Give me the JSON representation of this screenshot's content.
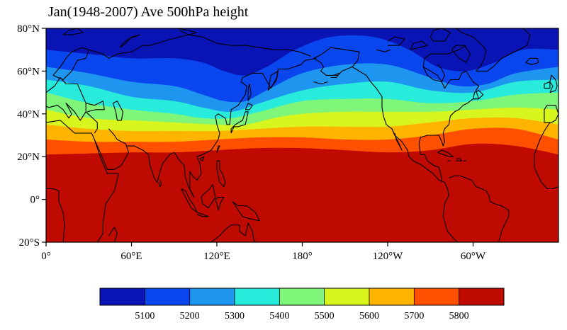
{
  "title": "Jan(1948-2007) Ave 500hPa height",
  "map": {
    "projection": "cylindrical-equidistant",
    "lon_range": [
      0,
      360
    ],
    "lat_range": [
      -20,
      80
    ],
    "coastlines": true,
    "field": "500hPa geopotential height"
  },
  "axes": {
    "lat_ticks": [
      {
        "value": 80,
        "label": "80°N"
      },
      {
        "value": 60,
        "label": "60°N"
      },
      {
        "value": 40,
        "label": "40°N"
      },
      {
        "value": 20,
        "label": "20°N"
      },
      {
        "value": 0,
        "label": "0°"
      },
      {
        "value": -20,
        "label": "20°S"
      }
    ],
    "lon_ticks": [
      {
        "value": 0,
        "label": "0°"
      },
      {
        "value": 60,
        "label": "60°E"
      },
      {
        "value": 120,
        "label": "120°E"
      },
      {
        "value": 180,
        "label": "180°"
      },
      {
        "value": 240,
        "label": "120°W"
      },
      {
        "value": 300,
        "label": "60°W"
      }
    ]
  },
  "colorbar": {
    "levels": [
      "5100",
      "5200",
      "5300",
      "5400",
      "5500",
      "5600",
      "5700",
      "5800"
    ],
    "colors": [
      "#0a14b4",
      "#0a46ee",
      "#1e96f0",
      "#28ebdc",
      "#7ff57a",
      "#d8f51e",
      "#ffb400",
      "#ff5000",
      "#be0a00"
    ]
  },
  "contours": [
    {
      "level": 5800,
      "points": [
        [
          0,
          21
        ],
        [
          30,
          21.5
        ],
        [
          60,
          22
        ],
        [
          90,
          22
        ],
        [
          120,
          23
        ],
        [
          150,
          24
        ],
        [
          180,
          24
        ],
        [
          210,
          23
        ],
        [
          240,
          22
        ],
        [
          270,
          23
        ],
        [
          300,
          26
        ],
        [
          330,
          25
        ],
        [
          360,
          21
        ]
      ]
    },
    {
      "level": 5700,
      "points": [
        [
          0,
          28
        ],
        [
          30,
          27
        ],
        [
          60,
          27
        ],
        [
          90,
          27
        ],
        [
          120,
          28
        ],
        [
          150,
          29
        ],
        [
          180,
          29
        ],
        [
          210,
          28
        ],
        [
          240,
          28
        ],
        [
          270,
          30
        ],
        [
          300,
          33
        ],
        [
          330,
          33
        ],
        [
          360,
          28
        ]
      ]
    },
    {
      "level": 5600,
      "points": [
        [
          0,
          35
        ],
        [
          30,
          33
        ],
        [
          60,
          32
        ],
        [
          90,
          32
        ],
        [
          120,
          32
        ],
        [
          150,
          33
        ],
        [
          180,
          34
        ],
        [
          210,
          34
        ],
        [
          240,
          34
        ],
        [
          270,
          36
        ],
        [
          300,
          38
        ],
        [
          330,
          38
        ],
        [
          360,
          35
        ]
      ]
    },
    {
      "level": 5500,
      "points": [
        [
          0,
          42
        ],
        [
          30,
          38
        ],
        [
          60,
          37
        ],
        [
          90,
          36
        ],
        [
          120,
          35
        ],
        [
          140,
          35
        ],
        [
          160,
          38
        ],
        [
          180,
          40
        ],
        [
          210,
          41
        ],
        [
          240,
          41
        ],
        [
          270,
          41
        ],
        [
          300,
          42
        ],
        [
          330,
          43
        ],
        [
          360,
          42
        ]
      ]
    },
    {
      "level": 5400,
      "points": [
        [
          0,
          50
        ],
        [
          30,
          45
        ],
        [
          60,
          42
        ],
        [
          90,
          40
        ],
        [
          110,
          38
        ],
        [
          130,
          38
        ],
        [
          150,
          41
        ],
        [
          180,
          46
        ],
        [
          210,
          47
        ],
        [
          240,
          47
        ],
        [
          270,
          45
        ],
        [
          300,
          46
        ],
        [
          330,
          49
        ],
        [
          360,
          50
        ]
      ]
    },
    {
      "level": 5300,
      "points": [
        [
          0,
          56
        ],
        [
          30,
          53
        ],
        [
          60,
          48
        ],
        [
          90,
          46
        ],
        [
          110,
          43
        ],
        [
          130,
          41
        ],
        [
          150,
          45
        ],
        [
          180,
          51
        ],
        [
          210,
          54
        ],
        [
          240,
          55
        ],
        [
          270,
          51
        ],
        [
          300,
          50
        ],
        [
          330,
          55
        ],
        [
          360,
          56
        ]
      ]
    },
    {
      "level": 5200,
      "points": [
        [
          0,
          62
        ],
        [
          30,
          59
        ],
        [
          60,
          55
        ],
        [
          90,
          53
        ],
        [
          110,
          49
        ],
        [
          125,
          46
        ],
        [
          140,
          46
        ],
        [
          155,
          51
        ],
        [
          180,
          59
        ],
        [
          210,
          63
        ],
        [
          240,
          63
        ],
        [
          270,
          57
        ],
        [
          290,
          53
        ],
        [
          310,
          54
        ],
        [
          330,
          59
        ],
        [
          360,
          62
        ]
      ]
    },
    {
      "level": 5100,
      "points": [
        [
          0,
          70
        ],
        [
          30,
          68
        ],
        [
          60,
          66
        ],
        [
          90,
          66
        ],
        [
          110,
          64
        ],
        [
          125,
          60
        ],
        [
          140,
          58
        ],
        [
          155,
          62
        ],
        [
          175,
          70
        ],
        [
          200,
          76
        ],
        [
          230,
          76
        ],
        [
          255,
          70
        ],
        [
          275,
          62
        ],
        [
          295,
          60
        ],
        [
          315,
          64
        ],
        [
          335,
          70
        ],
        [
          360,
          70
        ]
      ]
    }
  ]
}
